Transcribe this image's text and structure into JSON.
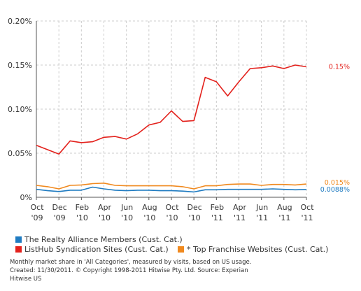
{
  "chart_data": {
    "type": "line",
    "title": "",
    "xlabel": "",
    "ylabel": "",
    "categories": [
      "Oct '09",
      "Nov '09",
      "Dec '09",
      "Jan '10",
      "Feb '10",
      "Mar '10",
      "Apr '10",
      "May '10",
      "Jun '10",
      "Jul '10",
      "Aug '10",
      "Sep '10",
      "Oct '10",
      "Nov '10",
      "Dec '10",
      "Jan '11",
      "Feb '11",
      "Mar '11",
      "Apr '11",
      "May '11",
      "Jun '11",
      "Jul '11",
      "Aug '11",
      "Sep '11",
      "Oct '11"
    ],
    "x_tick_labels": [
      {
        "line1": "Oct",
        "line2": "'09"
      },
      {
        "line1": "Dec",
        "line2": "'09"
      },
      {
        "line1": "Feb",
        "line2": "'10"
      },
      {
        "line1": "Apr",
        "line2": "'10"
      },
      {
        "line1": "Jun",
        "line2": "'10"
      },
      {
        "line1": "Aug",
        "line2": "'10"
      },
      {
        "line1": "Oct",
        "line2": "'10"
      },
      {
        "line1": "Dec",
        "line2": "'10"
      },
      {
        "line1": "Feb",
        "line2": "'11"
      },
      {
        "line1": "Apr",
        "line2": "'11"
      },
      {
        "line1": "Jun",
        "line2": "'11"
      },
      {
        "line1": "Aug",
        "line2": "'11"
      },
      {
        "line1": "Oct",
        "line2": "'11"
      }
    ],
    "y_tick_labels": [
      "0%",
      "0.05%",
      "0.10%",
      "0.15%",
      "0.20%"
    ],
    "y_ticks": [
      0,
      0.05,
      0.1,
      0.15,
      0.2
    ],
    "ylim": [
      0,
      0.2
    ],
    "grid": true,
    "series": [
      {
        "name": "ListHub Syndication Sites (Cust. Cat.)",
        "color": "#e3211c",
        "end_label": "0.15%",
        "values": [
          0.059,
          0.054,
          0.049,
          0.064,
          0.062,
          0.063,
          0.068,
          0.069,
          0.066,
          0.072,
          0.082,
          0.085,
          0.098,
          0.086,
          0.087,
          0.136,
          0.131,
          0.115,
          0.131,
          0.146,
          0.147,
          0.149,
          0.146,
          0.15,
          0.148
        ]
      },
      {
        "name": "* Top Franchise Websites (Cust. Cat.)",
        "color": "#f0891e",
        "end_label": "0.015%",
        "values": [
          0.0135,
          0.012,
          0.0095,
          0.0135,
          0.014,
          0.0155,
          0.016,
          0.0135,
          0.013,
          0.013,
          0.013,
          0.013,
          0.013,
          0.012,
          0.0095,
          0.013,
          0.013,
          0.0145,
          0.015,
          0.015,
          0.0135,
          0.0145,
          0.0145,
          0.014,
          0.015
        ]
      },
      {
        "name": "The Realty Alliance Members (Cust. Cat.)",
        "color": "#1f7bc1",
        "end_label": "0.0088%",
        "values": [
          0.009,
          0.0075,
          0.0065,
          0.008,
          0.008,
          0.0115,
          0.0095,
          0.008,
          0.0075,
          0.008,
          0.008,
          0.0075,
          0.0075,
          0.007,
          0.006,
          0.0085,
          0.0085,
          0.009,
          0.009,
          0.009,
          0.009,
          0.0095,
          0.009,
          0.0085,
          0.0088
        ]
      }
    ],
    "legend": [
      {
        "label": "The Realty Alliance Members (Cust. Cat.)",
        "color": "#1f7bc1"
      },
      {
        "label": "ListHub Syndication Sites (Cust. Cat.)",
        "color": "#e3211c"
      },
      {
        "label": "* Top Franchise Websites (Cust. Cat.)",
        "color": "#f0891e"
      }
    ]
  },
  "footer": {
    "line1": "Monthly market share in 'All Categories', measured by visits, based on US usage.",
    "line2": "Created: 11/30/2011. © Copyright 1998-2011 Hitwise Pty. Ltd.    Source: Experian Hitwise US"
  }
}
